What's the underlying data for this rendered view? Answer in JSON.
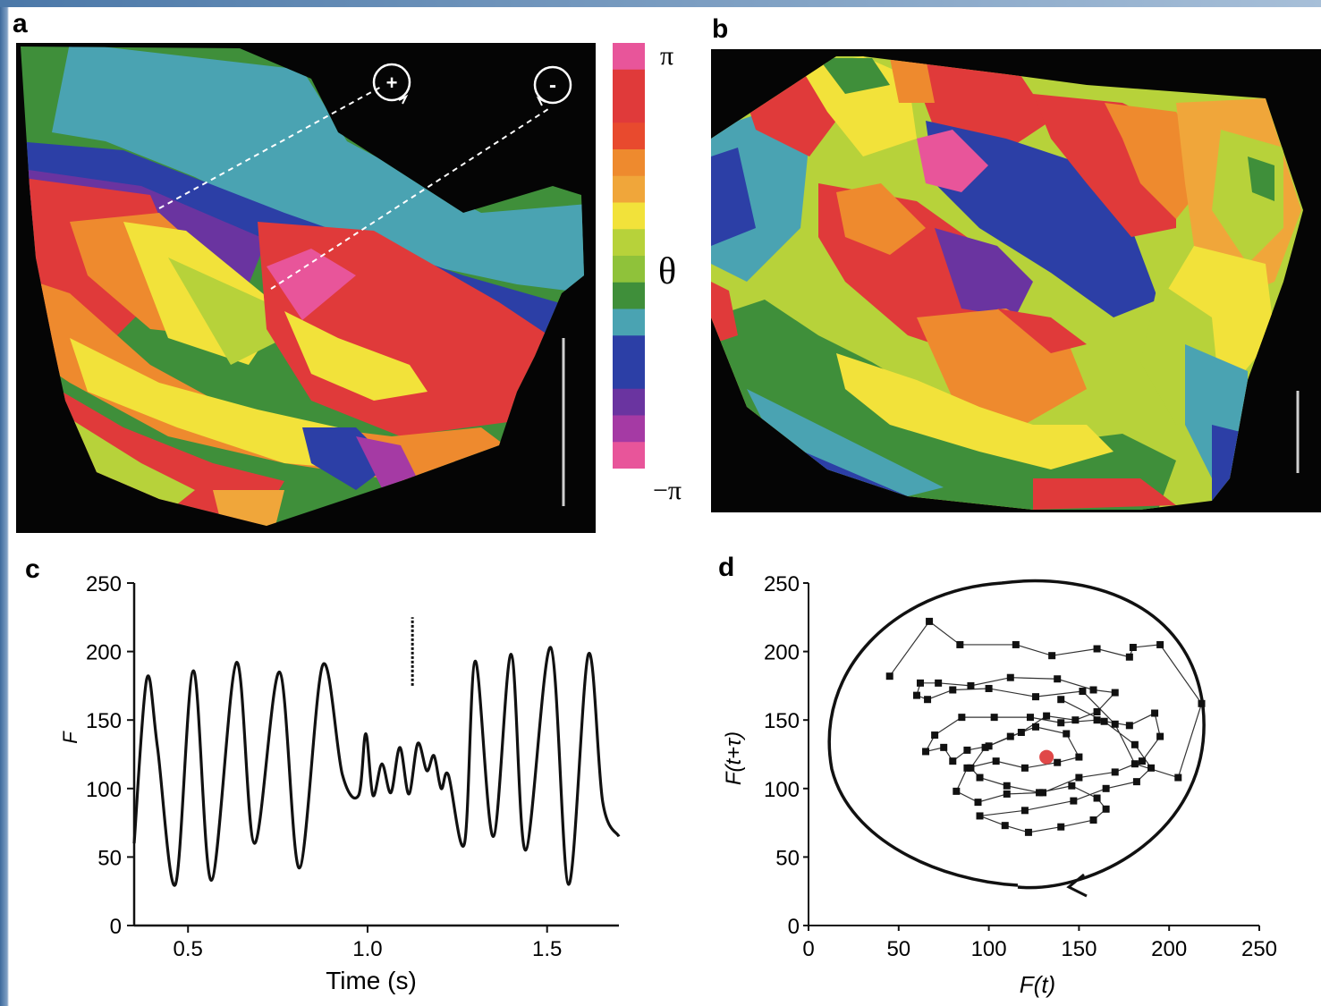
{
  "panels": {
    "a": {
      "letter": "a",
      "markers": {
        "plus": "+",
        "minus": "-"
      }
    },
    "b": {
      "letter": "b"
    },
    "c": {
      "letter": "c"
    },
    "d": {
      "letter": "d"
    }
  },
  "colorbar": {
    "top": "π",
    "bottom": "−π",
    "symbol": "θ",
    "colors": [
      "#e8559a",
      "#e03a3a",
      "#e03a3a",
      "#e84a2e",
      "#ee8a2e",
      "#f0a63a",
      "#f2e23a",
      "#b7d23a",
      "#8fc23a",
      "#3f8f3a",
      "#4aa3b2",
      "#2c3fa6",
      "#2c3fa6",
      "#6a34a0",
      "#a53aa4",
      "#e8559a"
    ]
  },
  "colors": {
    "trace": "#111111",
    "highlight": "#e04848"
  },
  "chart_data": [
    {
      "type": "line",
      "panel": "c",
      "xlabel": "Time (s)",
      "ylabel": "F",
      "xlim": [
        0.35,
        1.7
      ],
      "ylim": [
        0,
        250
      ],
      "xticks": [
        "0.5",
        "1.0",
        "1.5"
      ],
      "xtick_values": [
        0.5,
        1.0,
        1.5
      ],
      "yticks": [
        "0",
        "50",
        "100",
        "150",
        "200",
        "250"
      ],
      "ytick_values": [
        0,
        50,
        100,
        150,
        200,
        250
      ],
      "marker_time": 1.125,
      "marker_range": [
        175,
        225
      ],
      "series": [
        {
          "x": [
            0.35,
            0.385,
            0.415,
            0.465,
            0.515,
            0.565,
            0.635,
            0.685,
            0.755,
            0.81,
            0.875,
            0.93,
            0.975,
            0.995,
            1.015,
            1.04,
            1.065,
            1.09,
            1.115,
            1.14,
            1.165,
            1.185,
            1.205,
            1.225,
            1.27,
            1.3,
            1.35,
            1.4,
            1.44,
            1.51,
            1.56,
            1.615,
            1.655,
            1.7
          ],
          "y": [
            60,
            180,
            130,
            30,
            186,
            33,
            192,
            60,
            185,
            42,
            190,
            110,
            95,
            140,
            95,
            118,
            97,
            130,
            96,
            133,
            113,
            124,
            100,
            110,
            60,
            193,
            65,
            198,
            55,
            203,
            30,
            198,
            90,
            65
          ]
        }
      ]
    },
    {
      "type": "scatter",
      "panel": "d",
      "xlabel": "F(t)",
      "ylabel": "F(t+τ)",
      "xlim": [
        0,
        250
      ],
      "ylim": [
        0,
        250
      ],
      "xticks": [
        "0",
        "50",
        "100",
        "150",
        "200",
        "250"
      ],
      "xtick_values": [
        0,
        50,
        100,
        150,
        200,
        250
      ],
      "yticks": [
        "0",
        "50",
        "100",
        "150",
        "200",
        "250"
      ],
      "ytick_values": [
        0,
        50,
        100,
        150,
        200,
        250
      ],
      "center": {
        "x": 132,
        "y": 123
      },
      "points": {
        "x": [
          45,
          67,
          84,
          115,
          135,
          160,
          178,
          180,
          195,
          218,
          205,
          181,
          170,
          152,
          126,
          100,
          80,
          66,
          60,
          62,
          72,
          90,
          112,
          138,
          158,
          170,
          160,
          148,
          132,
          118,
          100,
          88,
          80,
          75,
          65,
          70,
          85,
          103,
          123,
          140,
          160,
          178,
          192,
          195,
          185,
          170,
          150,
          130,
          110,
          94,
          82,
          88,
          104,
          120,
          138,
          150,
          143,
          126,
          112,
          98,
          90,
          95,
          110,
          128,
          146,
          160,
          165,
          158,
          140,
          122,
          109,
          95,
          120,
          147,
          165,
          182,
          190,
          181,
          164,
          140
        ],
        "y": [
          182,
          222,
          205,
          205,
          197,
          202,
          196,
          203,
          205,
          162,
          108,
          118,
          147,
          171,
          167,
          173,
          172,
          165,
          168,
          177,
          177,
          175,
          181,
          180,
          172,
          170,
          156,
          150,
          153,
          141,
          131,
          128,
          120,
          130,
          127,
          139,
          152,
          152,
          152,
          148,
          150,
          146,
          155,
          138,
          120,
          112,
          108,
          97,
          96,
          90,
          98,
          115,
          120,
          115,
          119,
          123,
          140,
          145,
          138,
          130,
          115,
          108,
          102,
          97,
          102,
          93,
          85,
          77,
          72,
          68,
          73,
          80,
          84,
          91,
          100,
          105,
          115,
          132,
          149,
          165
        ]
      }
    }
  ]
}
